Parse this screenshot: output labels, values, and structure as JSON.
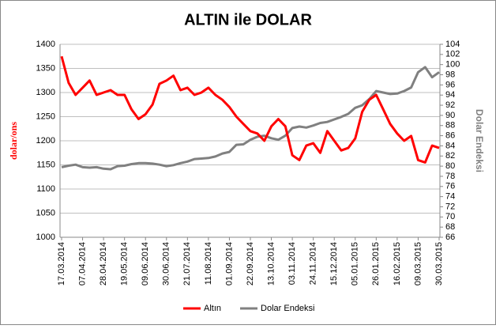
{
  "chart_data": {
    "type": "line",
    "title": "ALTIN ile DOLAR",
    "ylabel": "dolar/ons",
    "y2label": "Dolar Endeksi",
    "x": [
      "17.03.2014",
      "24.03.2014",
      "31.03.2014",
      "07.04.2014",
      "14.04.2014",
      "21.04.2014",
      "28.04.2014",
      "05.05.2014",
      "12.05.2014",
      "19.05.2014",
      "26.05.2014",
      "02.06.2014",
      "09.06.2014",
      "16.06.2014",
      "23.06.2014",
      "30.06.2014",
      "07.07.2014",
      "14.07.2014",
      "21.07.2014",
      "28.07.2014",
      "04.08.2014",
      "11.08.2014",
      "18.08.2014",
      "25.08.2014",
      "01.09.2014",
      "08.09.2014",
      "15.09.2014",
      "22.09.2014",
      "29.09.2014",
      "06.10.2014",
      "13.10.2014",
      "20.10.2014",
      "27.10.2014",
      "03.11.2014",
      "10.11.2014",
      "17.11.2014",
      "24.11.2014",
      "01.12.2014",
      "08.12.2014",
      "15.12.2014",
      "22.12.2014",
      "29.12.2014",
      "05.01.2015",
      "12.01.2015",
      "19.01.2015",
      "26.01.2015",
      "02.02.2015",
      "09.02.2015",
      "16.02.2015",
      "23.02.2015",
      "02.03.2015",
      "09.03.2015",
      "16.03.2015",
      "23.03.2015",
      "30.03.2015"
    ],
    "series": [
      {
        "name": "Altın",
        "color": "#ff0000",
        "values": [
          1375,
          1320,
          1295,
          1310,
          1325,
          1295,
          1300,
          1305,
          1295,
          1295,
          1265,
          1245,
          1255,
          1275,
          1318,
          1325,
          1335,
          1305,
          1310,
          1295,
          1300,
          1310,
          1295,
          1285,
          1270,
          1250,
          1235,
          1220,
          1215,
          1200,
          1230,
          1245,
          1230,
          1170,
          1160,
          1190,
          1195,
          1175,
          1220,
          1200,
          1180,
          1185,
          1205,
          1260,
          1285,
          1295,
          1265,
          1235,
          1215,
          1200,
          1210,
          1160,
          1155,
          1190,
          1185
        ]
      },
      {
        "name": "Dolar Endeksi",
        "color": "#808080",
        "axis": "y2",
        "values": [
          79.8,
          80.1,
          80.3,
          79.8,
          79.7,
          79.8,
          79.5,
          79.4,
          80.0,
          80.1,
          80.4,
          80.6,
          80.6,
          80.5,
          80.3,
          80.0,
          80.2,
          80.6,
          80.9,
          81.4,
          81.5,
          81.6,
          81.9,
          82.5,
          82.8,
          84.2,
          84.3,
          85.2,
          85.8,
          86.0,
          85.5,
          85.2,
          86.0,
          87.5,
          87.8,
          87.6,
          88.0,
          88.5,
          88.7,
          89.2,
          89.7,
          90.3,
          91.5,
          92.0,
          93.2,
          94.8,
          94.5,
          94.2,
          94.3,
          94.8,
          95.5,
          98.5,
          99.5,
          97.5,
          98.5
        ]
      }
    ],
    "xticks": [
      "17.03.2014",
      "07.04.2014",
      "28.04.2014",
      "19.05.2014",
      "09.06.2014",
      "30.06.2014",
      "21.07.2014",
      "11.08.2014",
      "01.09.2014",
      "22.09.2014",
      "13.10.2014",
      "03.11.2014",
      "24.11.2014",
      "15.12.2014",
      "05.01.2015",
      "26.01.2015",
      "16.02.2015",
      "09.03.2015",
      "30.03.2015"
    ],
    "ylim": [
      1000,
      1400
    ],
    "yticks": [
      1000,
      1050,
      1100,
      1150,
      1200,
      1250,
      1300,
      1350,
      1400
    ],
    "y2lim": [
      66,
      104
    ],
    "y2ticks": [
      66,
      68,
      70,
      72,
      74,
      76,
      78,
      80,
      82,
      84,
      86,
      88,
      90,
      92,
      94,
      96,
      98,
      100,
      102,
      104
    ],
    "grid": true,
    "legend": "bottom"
  }
}
